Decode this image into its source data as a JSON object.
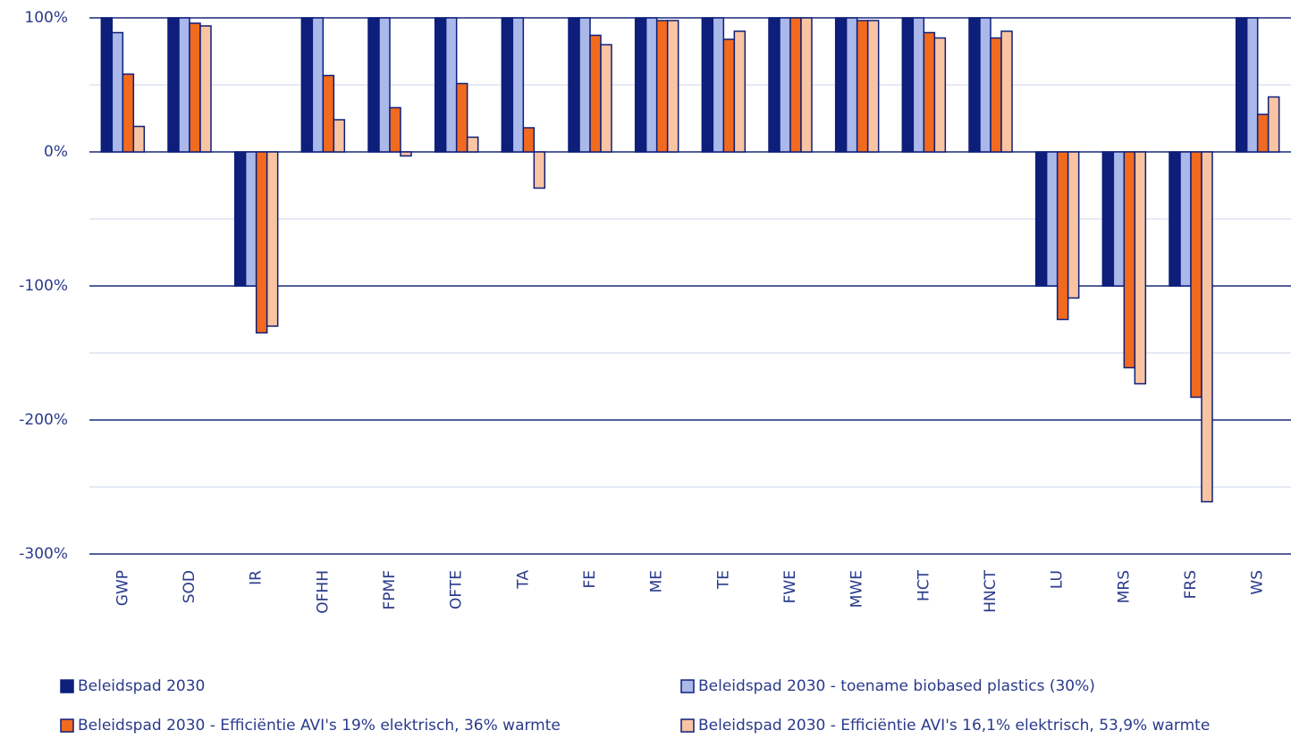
{
  "chart_data": {
    "type": "bar",
    "categories": [
      "GWP",
      "SOD",
      "IR",
      "OFHH",
      "FPMF",
      "OFTE",
      "TA",
      "FE",
      "ME",
      "TE",
      "FWE",
      "MWE",
      "HCT",
      "HNCT",
      "LU",
      "MRS",
      "FRS",
      "WS"
    ],
    "series": [
      {
        "name": "Beleidspad 2030",
        "color": "#0d1f7a",
        "values": [
          100,
          100,
          -100,
          100,
          100,
          100,
          100,
          100,
          100,
          100,
          100,
          100,
          100,
          100,
          -100,
          -100,
          -100,
          100
        ]
      },
      {
        "name": "Beleidspad 2030 - toename biobased plastics (30%)",
        "color": "#aab8ea",
        "values": [
          89,
          100,
          -100,
          100,
          100,
          100,
          100,
          100,
          100,
          100,
          100,
          100,
          100,
          100,
          -100,
          -100,
          -100,
          100
        ]
      },
      {
        "name": "Beleidspad 2030 - Efficiëntie AVI's 19% elektrisch, 36% warmte",
        "color": "#f26a1e",
        "values": [
          58,
          96,
          -135,
          57,
          33,
          51,
          18,
          87,
          98,
          84,
          100,
          98,
          89,
          85,
          -125,
          -161,
          -183,
          28
        ]
      },
      {
        "name": "Beleidspad 2030 - Efficiëntie AVI's 16,1% elektrisch, 53,9% warmte",
        "color": "#f8c4a2",
        "values": [
          19,
          94,
          -130,
          24,
          -3,
          11,
          -27,
          80,
          98,
          90,
          100,
          98,
          85,
          90,
          -109,
          -173,
          -261,
          41
        ]
      }
    ],
    "ylim": [
      -300,
      100
    ],
    "yticks": [
      {
        "value": 100,
        "label": "100%"
      },
      {
        "value": 0,
        "label": "0%"
      },
      {
        "value": -100,
        "label": "-100%"
      },
      {
        "value": -200,
        "label": "-200%"
      },
      {
        "value": -300,
        "label": "-300%"
      }
    ],
    "grid": true,
    "legend": "bottom"
  }
}
